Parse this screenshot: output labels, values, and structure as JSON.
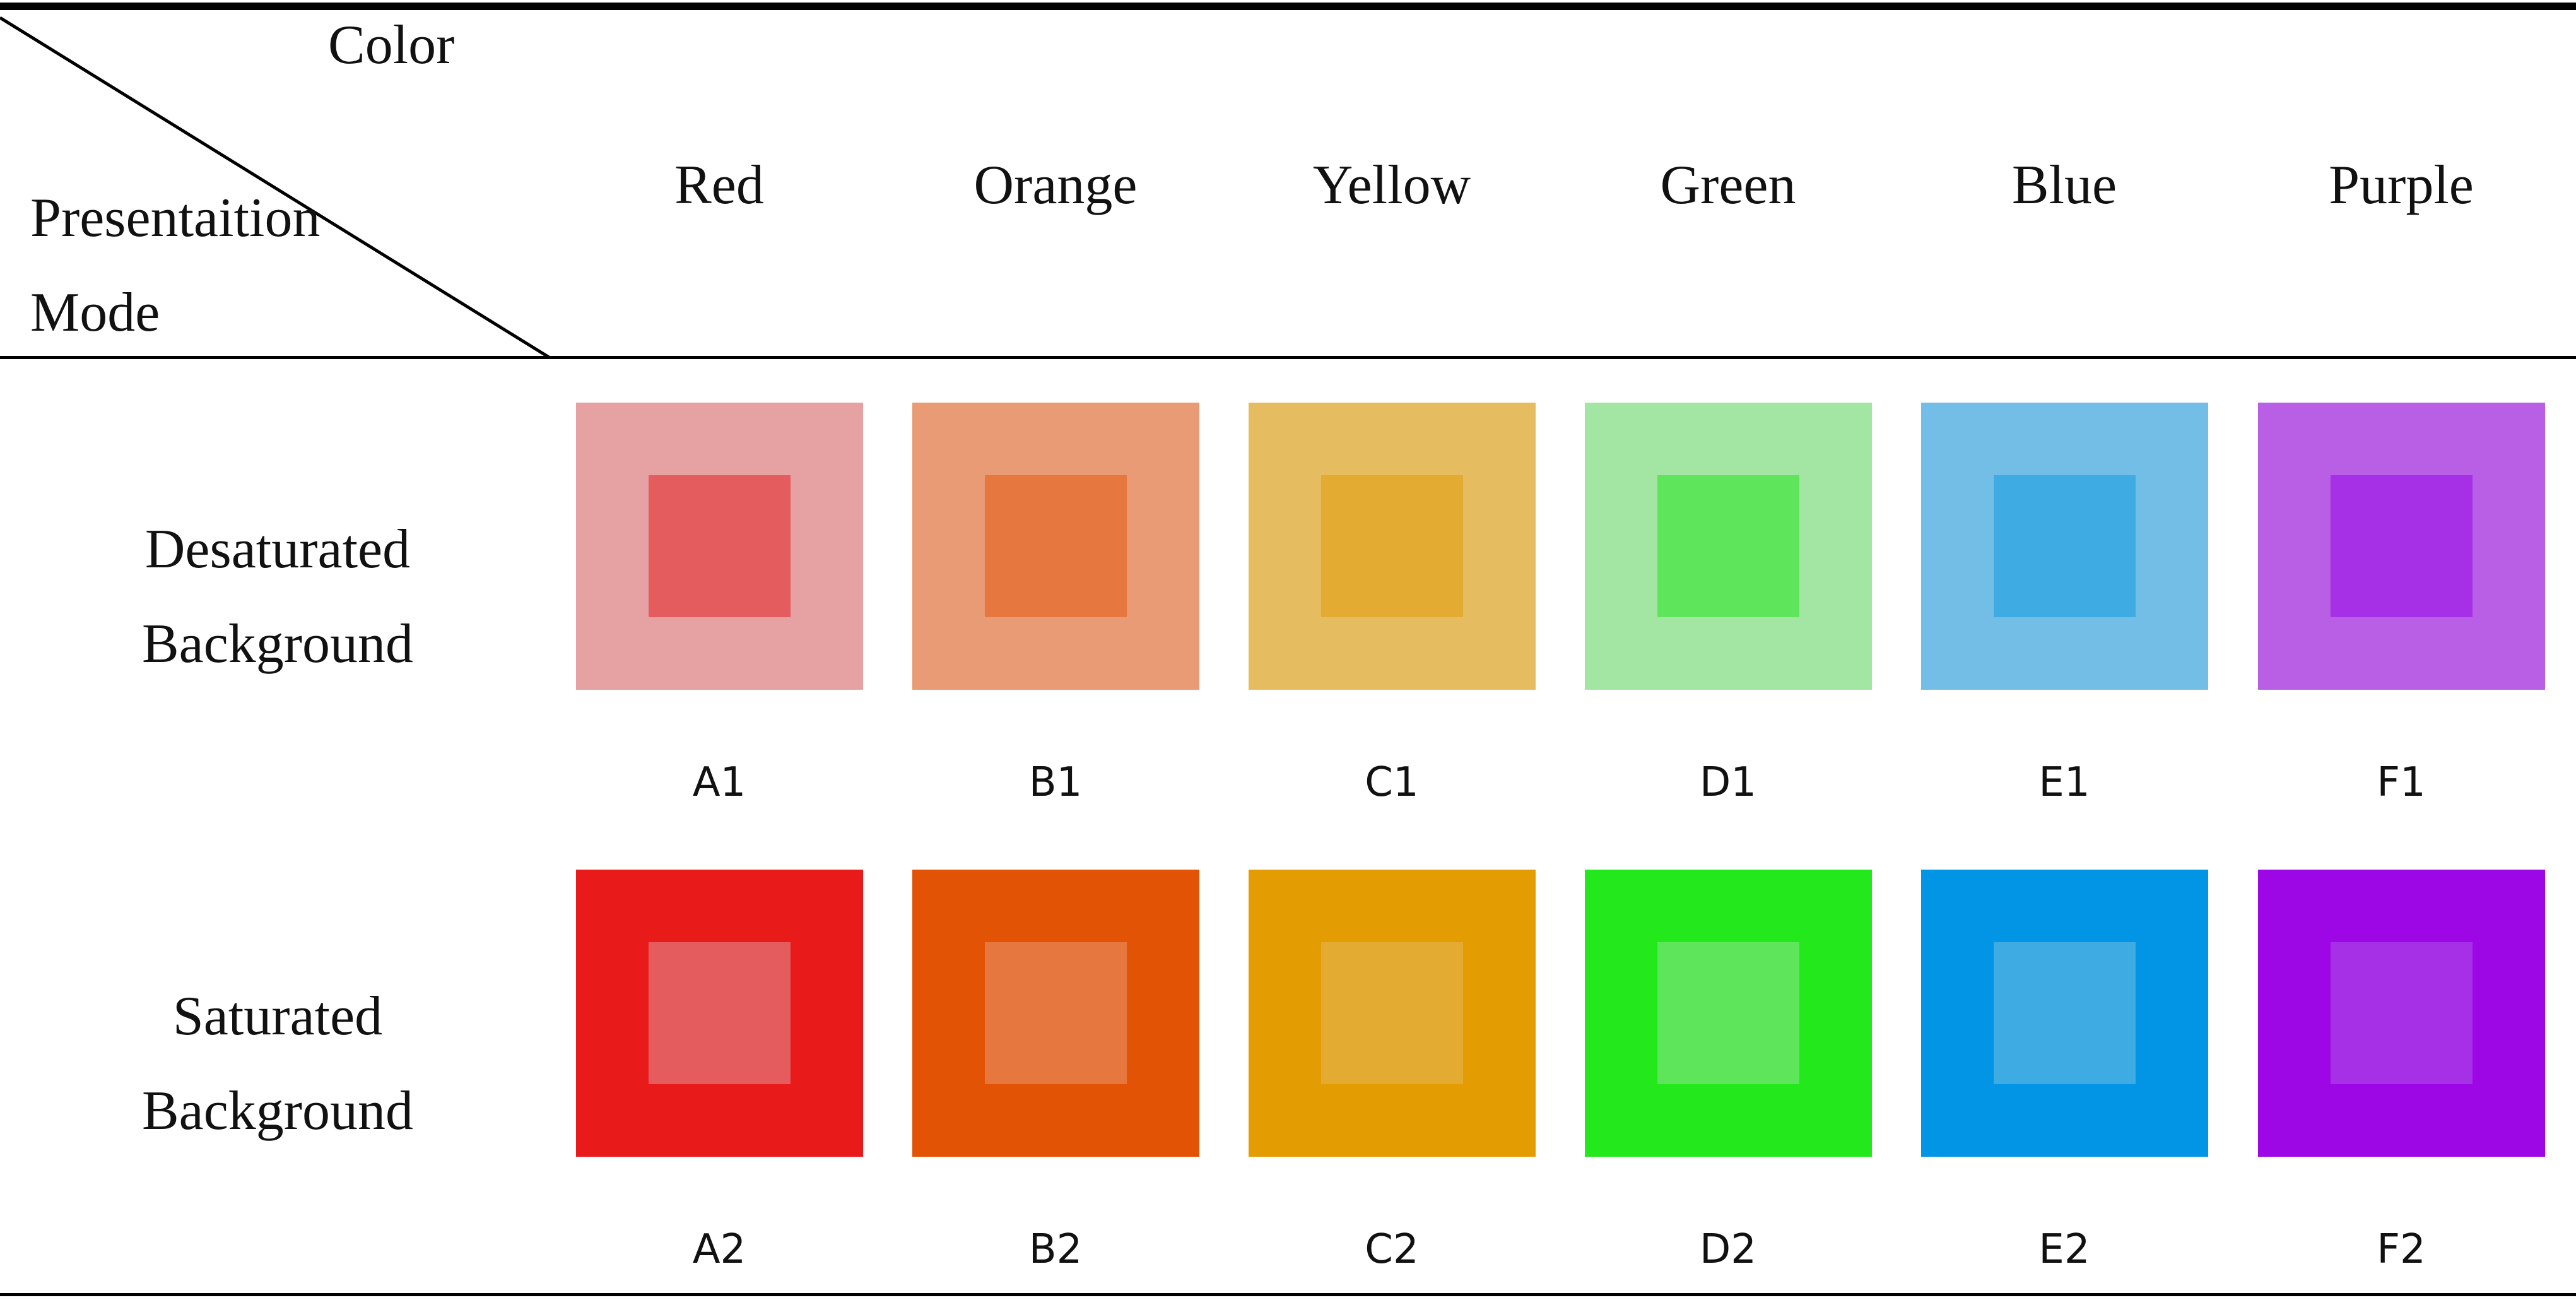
{
  "corner": {
    "top_label": "Color",
    "bottom_label_line1": "Presentaition",
    "bottom_label_line2": "Mode"
  },
  "columns": [
    "Red",
    "Orange",
    "Yellow",
    "Green",
    "Blue",
    "Purple"
  ],
  "rows": [
    {
      "label_line1": "Desaturated",
      "label_line2": "Background",
      "cells": [
        {
          "code": "A1",
          "outer": "#e6a1a3",
          "inner": "#e55c5f"
        },
        {
          "code": "B1",
          "outer": "#e89b74",
          "inner": "#e6773e"
        },
        {
          "code": "C1",
          "outer": "#e5bc5f",
          "inner": "#e3ab32"
        },
        {
          "code": "D1",
          "outer": "#a3e6a3",
          "inner": "#5fe55c"
        },
        {
          "code": "E1",
          "outer": "#73bee6",
          "inner": "#3eabe3"
        },
        {
          "code": "F1",
          "outer": "#b95fe6",
          "inner": "#a530e6"
        }
      ]
    },
    {
      "label_line1": "Saturated",
      "label_line2": "Background",
      "cells": [
        {
          "code": "A2",
          "outer": "#e81a1a",
          "inner": "#e55c5f"
        },
        {
          "code": "B2",
          "outer": "#e35305",
          "inner": "#e6773e"
        },
        {
          "code": "C2",
          "outer": "#e39d03",
          "inner": "#e3ab32"
        },
        {
          "code": "D2",
          "outer": "#22e81c",
          "inner": "#5fe55c"
        },
        {
          "code": "E2",
          "outer": "#0295e6",
          "inner": "#3eabe3"
        },
        {
          "code": "F2",
          "outer": "#9d06e5",
          "inner": "#a530e6"
        }
      ]
    }
  ]
}
